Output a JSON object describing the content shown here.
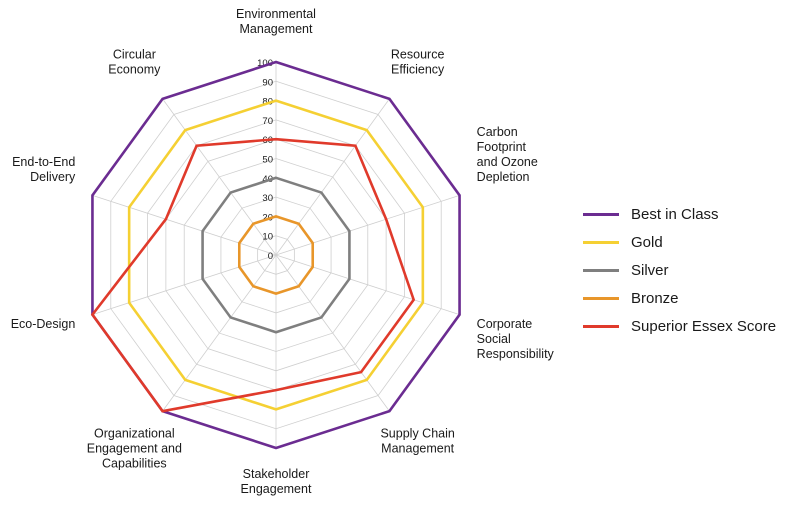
{
  "chart_data": {
    "type": "radar",
    "title": "",
    "axes": [
      [
        "Environmental",
        "Management"
      ],
      [
        "Resource",
        "Efficiency"
      ],
      [
        "Carbon",
        "Footprint",
        "and Ozone",
        "Depletion"
      ],
      [
        "Corporate",
        "Social",
        "Responsibility"
      ],
      [
        "Supply Chain",
        "Management"
      ],
      [
        "Stakeholder",
        "Engagement"
      ],
      [
        "Organizational",
        "Engagement and",
        "Capabilities"
      ],
      [
        "Eco-Design"
      ],
      [
        "End-to-End",
        "Delivery"
      ],
      [
        "Circular",
        "Economy"
      ]
    ],
    "range": [
      0,
      100
    ],
    "ticks": [
      "0",
      "10",
      "20",
      "30",
      "40",
      "50",
      "60",
      "70",
      "80",
      "90",
      "100"
    ],
    "grid": true,
    "legend_position": "right",
    "series": [
      {
        "name": "Best in Class",
        "color": "#6b2c91",
        "values": [
          100,
          100,
          100,
          100,
          100,
          100,
          100,
          100,
          100,
          100
        ]
      },
      {
        "name": "Gold",
        "color": "#f5d033",
        "values": [
          80,
          80,
          80,
          80,
          80,
          80,
          80,
          80,
          80,
          80
        ]
      },
      {
        "name": "Silver",
        "color": "#7f7f7f",
        "values": [
          40,
          40,
          40,
          40,
          40,
          40,
          40,
          40,
          40,
          40
        ]
      },
      {
        "name": "Bronze",
        "color": "#e8962a",
        "values": [
          20,
          20,
          20,
          20,
          20,
          20,
          20,
          20,
          20,
          20
        ]
      },
      {
        "name": "Superior Essex Score",
        "color": "#e03a2b",
        "values": [
          60,
          70,
          60,
          75,
          75,
          70,
          100,
          100,
          60,
          70
        ]
      }
    ]
  }
}
